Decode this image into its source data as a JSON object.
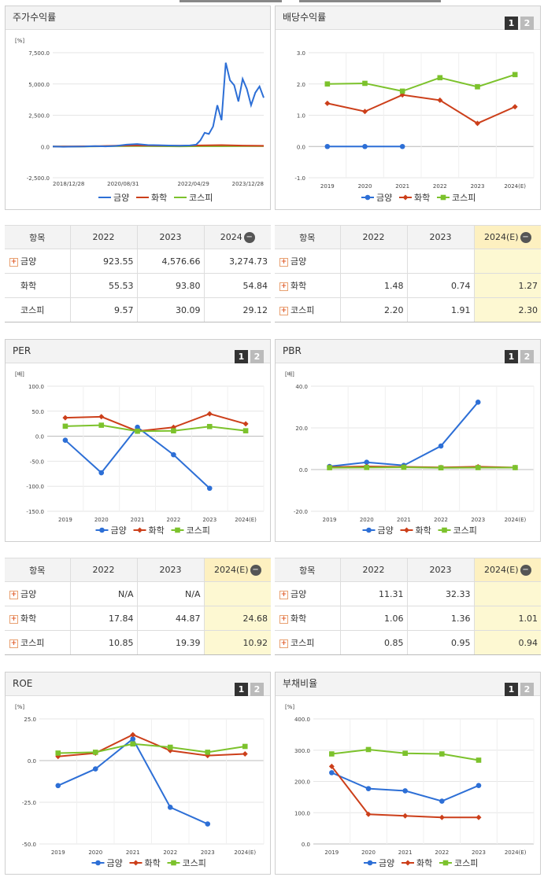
{
  "legend": [
    "금양",
    "화학",
    "코스피"
  ],
  "colors": {
    "금양": "#2d6fd6",
    "화학": "#cc3f1a",
    "코스피": "#7cc22c"
  },
  "panels": {
    "stock": {
      "title": "주가수익률"
    },
    "dividend": {
      "title": "배당수익률",
      "b1": "1",
      "b2": "2"
    },
    "per": {
      "title": "PER",
      "b1": "1",
      "b2": "2"
    },
    "pbr": {
      "title": "PBR",
      "b1": "1",
      "b2": "2"
    },
    "roe": {
      "title": "ROE",
      "b1": "1",
      "b2": "2"
    },
    "debt": {
      "title": "부채비율",
      "b1": "1",
      "b2": "2"
    }
  },
  "tables": {
    "stock": {
      "headers": [
        "항목",
        "2022",
        "2023",
        "2024"
      ],
      "rows": [
        {
          "name": "금양",
          "plus": true,
          "vals": [
            "923.55",
            "4,576.66",
            "3,274.73"
          ]
        },
        {
          "name": "화학",
          "plus": false,
          "vals": [
            "55.53",
            "93.80",
            "54.84"
          ]
        },
        {
          "name": "코스피",
          "plus": false,
          "vals": [
            "9.57",
            "30.09",
            "29.12"
          ]
        }
      ]
    },
    "dividend": {
      "headers": [
        "항목",
        "2022",
        "2023",
        "2024(E)"
      ],
      "rows": [
        {
          "name": "금양",
          "plus": true,
          "vals": [
            "",
            "",
            ""
          ]
        },
        {
          "name": "화학",
          "plus": true,
          "vals": [
            "1.48",
            "0.74",
            "1.27"
          ]
        },
        {
          "name": "코스피",
          "plus": true,
          "vals": [
            "2.20",
            "1.91",
            "2.30"
          ]
        }
      ]
    },
    "per": {
      "headers": [
        "항목",
        "2022",
        "2023",
        "2024(E)"
      ],
      "rows": [
        {
          "name": "금양",
          "plus": true,
          "vals": [
            "N/A",
            "N/A",
            ""
          ]
        },
        {
          "name": "화학",
          "plus": true,
          "vals": [
            "17.84",
            "44.87",
            "24.68"
          ]
        },
        {
          "name": "코스피",
          "plus": true,
          "vals": [
            "10.85",
            "19.39",
            "10.92"
          ]
        }
      ]
    },
    "pbr": {
      "headers": [
        "항목",
        "2022",
        "2023",
        "2024(E)"
      ],
      "rows": [
        {
          "name": "금양",
          "plus": true,
          "vals": [
            "11.31",
            "32.33",
            ""
          ]
        },
        {
          "name": "화학",
          "plus": true,
          "vals": [
            "1.06",
            "1.36",
            "1.01"
          ]
        },
        {
          "name": "코스피",
          "plus": true,
          "vals": [
            "0.85",
            "0.95",
            "0.94"
          ]
        }
      ]
    }
  },
  "chart_data": [
    {
      "id": "stock",
      "type": "line",
      "unit": "[%]",
      "xticks": [
        "2018/12/28",
        "2020/08/31",
        "2022/04/29",
        "2023/12/28"
      ],
      "yticks": [
        "7,500.0",
        "5,000.0",
        "2,500.0",
        "0.0",
        "-2,500.0"
      ],
      "ylim": [
        -2500,
        7500
      ],
      "series": [
        {
          "name": "금양",
          "t": [
            0,
            0.05,
            0.1,
            0.15,
            0.2,
            0.25,
            0.3,
            0.35,
            0.4,
            0.45,
            0.5,
            0.55,
            0.6,
            0.65,
            0.68,
            0.7,
            0.72,
            0.74,
            0.76,
            0.78,
            0.8,
            0.82,
            0.84,
            0.86,
            0.88,
            0.9,
            0.92,
            0.94,
            0.96,
            0.98,
            1.0
          ],
          "values": [
            0,
            -20,
            -10,
            0,
            30,
            10,
            50,
            150,
            200,
            120,
            100,
            80,
            60,
            90,
            150,
            500,
            1100,
            1000,
            1600,
            3300,
            2100,
            6700,
            5300,
            4900,
            3600,
            5400,
            4600,
            3300,
            4300,
            4800,
            3900
          ]
        },
        {
          "name": "화학",
          "t": [
            0,
            0.1,
            0.2,
            0.3,
            0.4,
            0.5,
            0.6,
            0.7,
            0.8,
            0.9,
            1.0
          ],
          "values": [
            0,
            10,
            20,
            60,
            90,
            70,
            60,
            90,
            110,
            70,
            55
          ]
        },
        {
          "name": "코스피",
          "t": [
            0,
            0.1,
            0.2,
            0.3,
            0.4,
            0.5,
            0.6,
            0.7,
            0.8,
            0.9,
            1.0
          ],
          "values": [
            0,
            -10,
            10,
            30,
            40,
            20,
            10,
            20,
            25,
            30,
            29
          ]
        }
      ]
    },
    {
      "id": "dividend",
      "type": "line",
      "categories": [
        "2019",
        "2020",
        "2021",
        "2022",
        "2023",
        "2024(E)"
      ],
      "yticks": [
        "3.0",
        "2.0",
        "1.0",
        "0.0",
        "-1.0"
      ],
      "ylim": [
        -1,
        3
      ],
      "series": [
        {
          "name": "금양",
          "values": [
            0.0,
            0.0,
            0.0,
            null,
            null,
            null
          ]
        },
        {
          "name": "화학",
          "values": [
            1.38,
            1.12,
            1.65,
            1.48,
            0.74,
            1.27
          ]
        },
        {
          "name": "코스피",
          "values": [
            2.0,
            2.02,
            1.77,
            2.2,
            1.91,
            2.3
          ]
        }
      ]
    },
    {
      "id": "per",
      "type": "line",
      "unit": "[배]",
      "categories": [
        "2019",
        "2020",
        "2021",
        "2022",
        "2023",
        "2024(E)"
      ],
      "yticks": [
        "100.0",
        "50.0",
        "0.0",
        "-50.0",
        "-100.0",
        "-150.0"
      ],
      "ylim": [
        -150,
        100
      ],
      "series": [
        {
          "name": "금양",
          "values": [
            -8,
            -73,
            18,
            -37,
            -104,
            null
          ]
        },
        {
          "name": "화학",
          "values": [
            37,
            39,
            10,
            17.84,
            44.87,
            24.68
          ]
        },
        {
          "name": "코스피",
          "values": [
            20,
            22,
            10,
            10.85,
            19.39,
            10.92
          ]
        }
      ]
    },
    {
      "id": "pbr",
      "type": "line",
      "unit": "[배]",
      "categories": [
        "2019",
        "2020",
        "2021",
        "2022",
        "2023",
        "2024(E)"
      ],
      "yticks": [
        "40.0",
        "20.0",
        "0.0",
        "-20.0"
      ],
      "ylim": [
        -20,
        40
      ],
      "series": [
        {
          "name": "금양",
          "values": [
            1.5,
            3.5,
            2.0,
            11.31,
            32.33,
            null
          ]
        },
        {
          "name": "화학",
          "values": [
            1.2,
            1.5,
            1.3,
            1.06,
            1.36,
            1.01
          ]
        },
        {
          "name": "코스피",
          "values": [
            0.9,
            1.0,
            1.1,
            0.85,
            0.95,
            0.94
          ]
        }
      ]
    },
    {
      "id": "roe",
      "type": "line",
      "unit": "[%]",
      "categories": [
        "2019",
        "2020",
        "2021",
        "2022",
        "2023",
        "2024(E)"
      ],
      "yticks": [
        "25.0",
        "0.0",
        "-25.0",
        "-50.0"
      ],
      "ylim": [
        -50,
        25
      ],
      "series": [
        {
          "name": "금양",
          "values": [
            -15,
            -5,
            13,
            -28,
            -38,
            null
          ]
        },
        {
          "name": "화학",
          "values": [
            2.5,
            4.5,
            15.5,
            6,
            3,
            4
          ]
        },
        {
          "name": "코스피",
          "values": [
            4.5,
            5,
            10,
            8,
            5,
            8.5
          ]
        }
      ]
    },
    {
      "id": "debt",
      "type": "line",
      "unit": "[%]",
      "categories": [
        "2019",
        "2020",
        "2021",
        "2022",
        "2023",
        "2024(E)"
      ],
      "yticks": [
        "400.0",
        "300.0",
        "200.0",
        "100.0",
        "0.0"
      ],
      "ylim": [
        0,
        400
      ],
      "series": [
        {
          "name": "금양",
          "values": [
            228,
            177,
            170,
            137,
            187,
            null
          ]
        },
        {
          "name": "화학",
          "values": [
            248,
            95,
            90,
            85,
            85,
            null
          ]
        },
        {
          "name": "코스피",
          "values": [
            288,
            302,
            290,
            288,
            268,
            null
          ]
        }
      ]
    }
  ]
}
